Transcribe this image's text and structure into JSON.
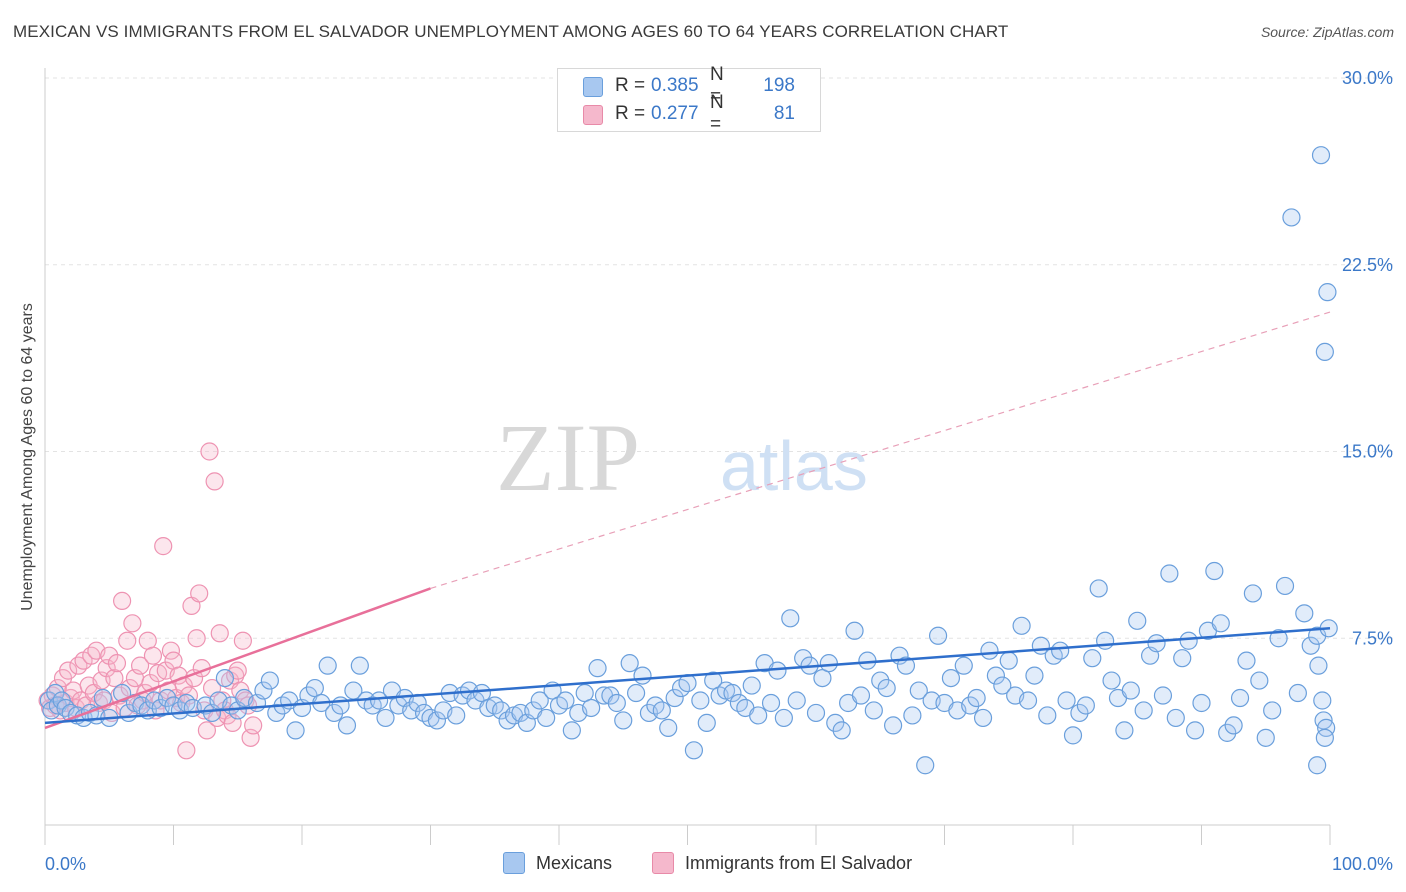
{
  "header": {
    "title": "MEXICAN VS IMMIGRANTS FROM EL SALVADOR UNEMPLOYMENT AMONG AGES 60 TO 64 YEARS CORRELATION CHART",
    "source": "Source: ZipAtlas.com"
  },
  "watermark": {
    "zip": "ZIP",
    "atlas": "atlas"
  },
  "legend": {
    "rows": [
      {
        "r_label": "R =",
        "r_value": "0.385",
        "n_label": "N =",
        "n_value": "198"
      },
      {
        "r_label": "R =",
        "r_value": "0.277",
        "n_label": "N =",
        "n_value": "81"
      }
    ]
  },
  "bottom_legend": {
    "series1": "Mexicans",
    "series2": "Immigrants from El Salvador"
  },
  "colors": {
    "blue": "#3b78c8",
    "blue_fill": "#a8c8f0",
    "pink": "#e8709a",
    "pink_fill": "#f5b8cc"
  },
  "chart_data": {
    "type": "scatter",
    "title": "MEXICAN VS IMMIGRANTS FROM EL SALVADOR UNEMPLOYMENT AMONG AGES 60 TO 64 YEARS CORRELATION CHART",
    "xlabel": "",
    "ylabel": "Unemployment Among Ages 60 to 64 years",
    "xlim": [
      0,
      100
    ],
    "ylim": [
      0,
      30
    ],
    "x_tick_labels": [
      "0.0%",
      "100.0%"
    ],
    "y_ticks": [
      7.5,
      15.0,
      22.5,
      30.0
    ],
    "y_tick_labels": [
      "7.5%",
      "15.0%",
      "22.5%",
      "30.0%"
    ],
    "grid": true,
    "legend_position": "top-center",
    "series": [
      {
        "name": "Mexicans",
        "color": "#3b78c8",
        "r": 0.385,
        "n": 198,
        "trend": {
          "x": [
            0,
            100
          ],
          "y": [
            4.1,
            7.9
          ]
        },
        "points": [
          [
            0.3,
            5.0
          ],
          [
            0.5,
            4.6
          ],
          [
            0.8,
            5.3
          ],
          [
            1.0,
            4.8
          ],
          [
            1.3,
            5.0
          ],
          [
            1.6,
            4.7
          ],
          [
            2.0,
            4.5
          ],
          [
            2.5,
            4.4
          ],
          [
            3.0,
            4.3
          ],
          [
            3.5,
            4.5
          ],
          [
            4.0,
            4.4
          ],
          [
            4.5,
            5.1
          ],
          [
            5.0,
            4.3
          ],
          [
            6.0,
            5.3
          ],
          [
            6.5,
            4.5
          ],
          [
            7.0,
            4.9
          ],
          [
            7.5,
            4.8
          ],
          [
            8.0,
            4.6
          ],
          [
            8.5,
            5.0
          ],
          [
            9.0,
            4.7
          ],
          [
            9.5,
            5.1
          ],
          [
            10.0,
            4.8
          ],
          [
            10.5,
            4.6
          ],
          [
            11.0,
            4.9
          ],
          [
            11.5,
            4.7
          ],
          [
            12.5,
            4.8
          ],
          [
            13.0,
            4.5
          ],
          [
            13.5,
            5.0
          ],
          [
            14.0,
            5.9
          ],
          [
            14.5,
            4.8
          ],
          [
            15.0,
            4.6
          ],
          [
            15.5,
            5.1
          ],
          [
            16.5,
            4.9
          ],
          [
            17.0,
            5.4
          ],
          [
            17.5,
            5.8
          ],
          [
            18.0,
            4.5
          ],
          [
            18.5,
            4.8
          ],
          [
            19.0,
            5.0
          ],
          [
            19.5,
            3.8
          ],
          [
            20.0,
            4.7
          ],
          [
            20.5,
            5.2
          ],
          [
            21.0,
            5.5
          ],
          [
            21.5,
            4.9
          ],
          [
            22.0,
            6.4
          ],
          [
            22.5,
            4.5
          ],
          [
            23.0,
            4.8
          ],
          [
            23.5,
            4.0
          ],
          [
            24.0,
            5.4
          ],
          [
            24.5,
            6.4
          ],
          [
            25.0,
            5.0
          ],
          [
            25.5,
            4.8
          ],
          [
            26.0,
            5.0
          ],
          [
            26.5,
            4.3
          ],
          [
            27.0,
            5.4
          ],
          [
            27.5,
            4.8
          ],
          [
            28.0,
            5.1
          ],
          [
            28.5,
            4.6
          ],
          [
            29.0,
            4.9
          ],
          [
            29.5,
            4.5
          ],
          [
            30.0,
            4.3
          ],
          [
            30.5,
            4.2
          ],
          [
            31.0,
            4.6
          ],
          [
            31.5,
            5.3
          ],
          [
            32.0,
            4.4
          ],
          [
            32.5,
            5.2
          ],
          [
            33.0,
            5.4
          ],
          [
            33.5,
            5.0
          ],
          [
            34.0,
            5.3
          ],
          [
            34.5,
            4.7
          ],
          [
            35.0,
            4.8
          ],
          [
            35.5,
            4.6
          ],
          [
            36.0,
            4.2
          ],
          [
            36.5,
            4.4
          ],
          [
            37.0,
            4.5
          ],
          [
            37.5,
            4.1
          ],
          [
            38.0,
            4.6
          ],
          [
            38.5,
            5.0
          ],
          [
            39.0,
            4.3
          ],
          [
            39.5,
            5.4
          ],
          [
            40.0,
            4.8
          ],
          [
            40.5,
            5.0
          ],
          [
            41.0,
            3.8
          ],
          [
            41.5,
            4.5
          ],
          [
            42.0,
            5.3
          ],
          [
            42.5,
            4.7
          ],
          [
            43.0,
            6.3
          ],
          [
            43.5,
            5.2
          ],
          [
            44.0,
            5.2
          ],
          [
            44.5,
            4.9
          ],
          [
            45.0,
            4.2
          ],
          [
            45.5,
            6.5
          ],
          [
            46.0,
            5.3
          ],
          [
            46.5,
            6.0
          ],
          [
            47.0,
            4.5
          ],
          [
            47.5,
            4.8
          ],
          [
            48.0,
            4.6
          ],
          [
            48.5,
            3.9
          ],
          [
            49.0,
            5.1
          ],
          [
            49.5,
            5.5
          ],
          [
            50.0,
            5.7
          ],
          [
            50.5,
            3.0
          ],
          [
            51.0,
            5.0
          ],
          [
            51.5,
            4.1
          ],
          [
            52.0,
            5.8
          ],
          [
            52.5,
            5.2
          ],
          [
            53.0,
            5.4
          ],
          [
            53.5,
            5.3
          ],
          [
            54.0,
            4.9
          ],
          [
            54.5,
            4.7
          ],
          [
            55.0,
            5.6
          ],
          [
            55.5,
            4.4
          ],
          [
            56.0,
            6.5
          ],
          [
            56.5,
            4.9
          ],
          [
            57.0,
            6.2
          ],
          [
            57.5,
            4.3
          ],
          [
            58.0,
            8.3
          ],
          [
            58.5,
            5.0
          ],
          [
            59.0,
            6.7
          ],
          [
            59.5,
            6.4
          ],
          [
            60.0,
            4.5
          ],
          [
            60.5,
            5.9
          ],
          [
            61.0,
            6.5
          ],
          [
            61.5,
            4.1
          ],
          [
            62.0,
            3.8
          ],
          [
            62.5,
            4.9
          ],
          [
            63.0,
            7.8
          ],
          [
            63.5,
            5.2
          ],
          [
            64.0,
            6.6
          ],
          [
            64.5,
            4.6
          ],
          [
            65.0,
            5.8
          ],
          [
            65.5,
            5.5
          ],
          [
            66.0,
            4.0
          ],
          [
            66.5,
            6.8
          ],
          [
            67.0,
            6.4
          ],
          [
            67.5,
            4.4
          ],
          [
            68.0,
            5.4
          ],
          [
            68.5,
            2.4
          ],
          [
            69.0,
            5.0
          ],
          [
            69.5,
            7.6
          ],
          [
            70.0,
            4.9
          ],
          [
            70.5,
            5.9
          ],
          [
            71.0,
            4.6
          ],
          [
            71.5,
            6.4
          ],
          [
            72.0,
            4.8
          ],
          [
            72.5,
            5.1
          ],
          [
            73.0,
            4.3
          ],
          [
            73.5,
            7.0
          ],
          [
            74.0,
            6.0
          ],
          [
            74.5,
            5.6
          ],
          [
            75.0,
            6.6
          ],
          [
            75.5,
            5.2
          ],
          [
            76.0,
            8.0
          ],
          [
            76.5,
            5.0
          ],
          [
            77.0,
            6.0
          ],
          [
            77.5,
            7.2
          ],
          [
            78.0,
            4.4
          ],
          [
            78.5,
            6.8
          ],
          [
            79.0,
            7.0
          ],
          [
            79.5,
            5.0
          ],
          [
            80.0,
            3.6
          ],
          [
            80.5,
            4.5
          ],
          [
            81.0,
            4.8
          ],
          [
            81.5,
            6.7
          ],
          [
            82.0,
            9.5
          ],
          [
            82.5,
            7.4
          ],
          [
            83.0,
            5.8
          ],
          [
            83.5,
            5.1
          ],
          [
            84.0,
            3.8
          ],
          [
            84.5,
            5.4
          ],
          [
            85.0,
            8.2
          ],
          [
            85.5,
            4.6
          ],
          [
            86.0,
            6.8
          ],
          [
            86.5,
            7.3
          ],
          [
            87.0,
            5.2
          ],
          [
            87.5,
            10.1
          ],
          [
            88.0,
            4.3
          ],
          [
            88.5,
            6.7
          ],
          [
            89.0,
            7.4
          ],
          [
            89.5,
            3.8
          ],
          [
            90.0,
            4.9
          ],
          [
            90.5,
            7.8
          ],
          [
            91.0,
            10.2
          ],
          [
            91.5,
            8.1
          ],
          [
            92.0,
            3.7
          ],
          [
            92.5,
            4.0
          ],
          [
            93.0,
            5.1
          ],
          [
            93.5,
            6.6
          ],
          [
            94.0,
            9.3
          ],
          [
            94.5,
            5.8
          ],
          [
            95.0,
            3.5
          ],
          [
            95.5,
            4.6
          ],
          [
            96.0,
            7.5
          ],
          [
            96.5,
            9.6
          ],
          [
            97.0,
            24.4
          ],
          [
            97.5,
            5.3
          ],
          [
            98.0,
            8.5
          ],
          [
            98.5,
            7.2
          ],
          [
            99.0,
            7.6
          ],
          [
            99.5,
            4.2
          ],
          [
            99.7,
            3.9
          ],
          [
            99.9,
            7.9
          ],
          [
            99.0,
            2.4
          ],
          [
            99.3,
            26.9
          ],
          [
            99.6,
            19.0
          ],
          [
            99.8,
            21.4
          ],
          [
            99.1,
            6.4
          ],
          [
            99.4,
            5.0
          ],
          [
            99.6,
            3.5
          ]
        ]
      },
      {
        "name": "Immigrants from El Salvador",
        "color": "#e8709a",
        "r": 0.277,
        "n": 81,
        "trend": {
          "x": [
            0,
            30
          ],
          "y": [
            3.9,
            9.5
          ]
        },
        "trend_extension": {
          "x": [
            30,
            100
          ],
          "y": [
            9.5,
            20.6
          ]
        },
        "points": [
          [
            0.2,
            5.0
          ],
          [
            0.4,
            4.7
          ],
          [
            0.6,
            5.2
          ],
          [
            0.8,
            4.8
          ],
          [
            1.0,
            5.5
          ],
          [
            1.2,
            4.6
          ],
          [
            1.4,
            5.9
          ],
          [
            1.6,
            4.9
          ],
          [
            1.8,
            6.2
          ],
          [
            2.0,
            5.1
          ],
          [
            2.2,
            5.4
          ],
          [
            2.4,
            4.7
          ],
          [
            2.6,
            6.4
          ],
          [
            2.8,
            5.0
          ],
          [
            3.0,
            6.6
          ],
          [
            3.2,
            4.8
          ],
          [
            3.4,
            5.6
          ],
          [
            3.6,
            6.8
          ],
          [
            3.8,
            5.3
          ],
          [
            4.0,
            7.0
          ],
          [
            4.2,
            4.9
          ],
          [
            4.4,
            5.8
          ],
          [
            4.6,
            5.0
          ],
          [
            4.8,
            6.3
          ],
          [
            5.0,
            6.8
          ],
          [
            5.2,
            4.5
          ],
          [
            5.4,
            5.9
          ],
          [
            5.6,
            6.5
          ],
          [
            5.8,
            5.2
          ],
          [
            6.0,
            9.0
          ],
          [
            6.2,
            4.7
          ],
          [
            6.4,
            7.4
          ],
          [
            6.6,
            5.5
          ],
          [
            6.8,
            8.1
          ],
          [
            7.0,
            5.9
          ],
          [
            7.2,
            4.8
          ],
          [
            7.4,
            6.4
          ],
          [
            7.6,
            5.0
          ],
          [
            7.8,
            5.3
          ],
          [
            8.0,
            7.4
          ],
          [
            8.2,
            5.7
          ],
          [
            8.4,
            6.8
          ],
          [
            8.6,
            4.6
          ],
          [
            8.8,
            6.1
          ],
          [
            9.0,
            5.0
          ],
          [
            9.2,
            11.2
          ],
          [
            9.4,
            6.2
          ],
          [
            9.6,
            5.4
          ],
          [
            9.8,
            7.0
          ],
          [
            10.0,
            6.6
          ],
          [
            10.2,
            5.1
          ],
          [
            10.4,
            6.0
          ],
          [
            10.6,
            4.9
          ],
          [
            10.8,
            5.6
          ],
          [
            11.0,
            3.0
          ],
          [
            11.2,
            5.2
          ],
          [
            11.4,
            8.8
          ],
          [
            11.6,
            5.9
          ],
          [
            11.8,
            7.5
          ],
          [
            12.0,
            9.3
          ],
          [
            12.2,
            6.3
          ],
          [
            12.4,
            4.6
          ],
          [
            12.6,
            3.8
          ],
          [
            12.8,
            15.0
          ],
          [
            13.0,
            5.5
          ],
          [
            13.2,
            13.8
          ],
          [
            13.4,
            4.3
          ],
          [
            13.6,
            7.7
          ],
          [
            13.8,
            5.0
          ],
          [
            14.0,
            4.6
          ],
          [
            14.2,
            4.4
          ],
          [
            14.4,
            5.8
          ],
          [
            14.6,
            4.1
          ],
          [
            14.8,
            6.0
          ],
          [
            15.0,
            6.2
          ],
          [
            15.2,
            5.4
          ],
          [
            15.4,
            7.4
          ],
          [
            15.6,
            5.0
          ],
          [
            15.8,
            4.8
          ],
          [
            16.0,
            3.5
          ],
          [
            16.2,
            4.0
          ]
        ]
      }
    ]
  }
}
